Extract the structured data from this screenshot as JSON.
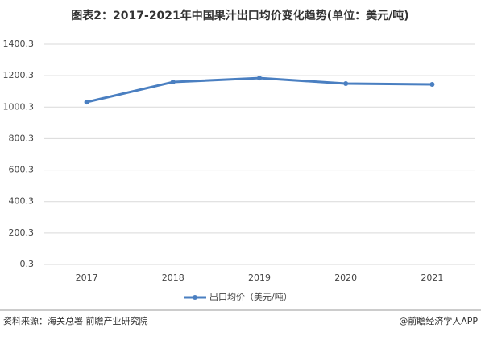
{
  "chart_data": {
    "type": "line",
    "title": "图表2：2017-2021年中国果汁出口均价变化趋势(单位：美元/吨)",
    "categories": [
      "2017",
      "2018",
      "2019",
      "2020",
      "2021"
    ],
    "series": [
      {
        "name": "出口均价（美元/吨）",
        "color": "#4a7fc1",
        "values": [
          1032,
          1160,
          1185,
          1150,
          1145
        ]
      }
    ],
    "ylim": [
      0.3,
      1400.3
    ],
    "yticks": [
      0.3,
      200.3,
      400.3,
      600.3,
      800.3,
      1000.3,
      1200.3,
      1400.3
    ],
    "grid": true,
    "legend": "bottom"
  },
  "footer": {
    "source": "资料来源：海关总署 前瞻产业研究院",
    "brand": "@前瞻经济学人APP"
  }
}
